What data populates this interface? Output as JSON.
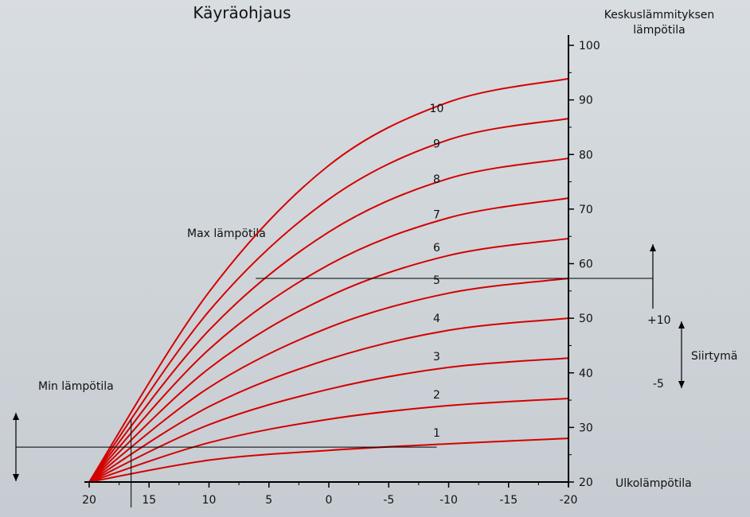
{
  "chart_data": {
    "type": "line",
    "title": "Käyräohjaus",
    "ylabel": [
      "Keskuslämmityksen",
      "lämpötila"
    ],
    "xlabel": "Ulkolämpötila",
    "xlim": [
      20,
      -20
    ],
    "ylim": [
      20,
      100
    ],
    "xticks": [
      20,
      15,
      10,
      5,
      0,
      -5,
      -10,
      -15,
      -20
    ],
    "xtick_labels": [
      "20",
      "15",
      "10",
      "5",
      "0",
      "-5",
      "-10",
      "-15",
      "-20"
    ],
    "yticks": [
      20,
      30,
      40,
      50,
      60,
      70,
      80,
      90,
      100
    ],
    "ytick_labels": [
      "20",
      "30",
      "40",
      "50",
      "60",
      "70",
      "80",
      "90",
      "100"
    ],
    "series_color": "#d40000",
    "series": [
      {
        "name": "1",
        "x": [
          20,
          10,
          0,
          -10,
          -20
        ],
        "y": [
          20.0,
          24.0,
          25.8,
          27.0,
          28.0
        ],
        "label_at": [
          -9,
          28
        ]
      },
      {
        "name": "2",
        "x": [
          20,
          10,
          0,
          -10,
          -20
        ],
        "y": [
          20.0,
          27.2,
          31.5,
          34.0,
          35.3
        ],
        "label_at": [
          -9,
          35
        ]
      },
      {
        "name": "3",
        "x": [
          20,
          10,
          0,
          -10,
          -20
        ],
        "y": [
          20.0,
          30.5,
          37.0,
          41.0,
          42.7
        ],
        "label_at": [
          -9,
          42
        ]
      },
      {
        "name": "4",
        "x": [
          20,
          10,
          0,
          -10,
          -20
        ],
        "y": [
          20.0,
          33.8,
          42.5,
          47.8,
          50.0
        ],
        "label_at": [
          -9,
          49
        ]
      },
      {
        "name": "5",
        "x": [
          20,
          10,
          0,
          -10,
          -20
        ],
        "y": [
          20.0,
          37.3,
          48.3,
          54.6,
          57.3
        ],
        "label_at": [
          -9,
          56
        ]
      },
      {
        "name": "6",
        "x": [
          20,
          10,
          0,
          -10,
          -20
        ],
        "y": [
          20.0,
          40.8,
          54.0,
          61.5,
          64.6
        ],
        "label_at": [
          -9,
          62
        ]
      },
      {
        "name": "7",
        "x": [
          20,
          10,
          0,
          -10,
          -20
        ],
        "y": [
          20.0,
          44.3,
          59.8,
          68.4,
          72.0
        ],
        "label_at": [
          -9,
          68
        ]
      },
      {
        "name": "8",
        "x": [
          20,
          10,
          0,
          -10,
          -20
        ],
        "y": [
          20.0,
          47.8,
          65.8,
          75.6,
          79.3
        ],
        "label_at": [
          -9,
          74.5
        ]
      },
      {
        "name": "9",
        "x": [
          20,
          10,
          0,
          -10,
          -20
        ],
        "y": [
          20.0,
          51.3,
          71.8,
          82.7,
          86.6
        ],
        "label_at": [
          -9,
          81
        ]
      },
      {
        "name": "10",
        "x": [
          20,
          10,
          0,
          -10,
          -20
        ],
        "y": [
          20.0,
          54.8,
          78.0,
          89.6,
          93.9
        ],
        "label_at": [
          -9,
          87.5
        ]
      }
    ],
    "annotations": {
      "max_label": "Max lämpötila",
      "min_label": "Min lämpötila",
      "max_level": 57.3,
      "max_line_from_x": 5.7,
      "min_level": 26.4,
      "min_cutoff_x": 16.5,
      "shift_label": "Siirtymä",
      "shift_plus": "+10",
      "shift_minus": "-5"
    },
    "grid": false
  }
}
